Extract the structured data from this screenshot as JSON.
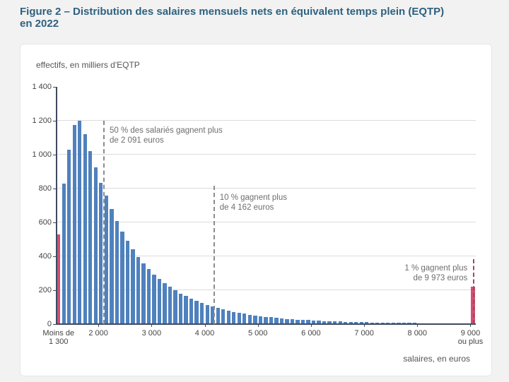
{
  "page": {
    "title_line1": "Figure 2 – Distribution des salaires mensuels nets en équivalent temps plein (EQTP)",
    "title_line2": "en 2022"
  },
  "chart_data": {
    "type": "bar",
    "title": "Figure 2 – Distribution des salaires mensuels nets en équivalent temps plein (EQTP) en 2022",
    "ylabel": "effectifs, en milliers d'EQTP",
    "xlabel": "salaires, en euros",
    "ylim": [
      0,
      1400
    ],
    "y_tick_step": 200,
    "y_tick_labels": [
      "0",
      "200",
      "400",
      "600",
      "800",
      "1 000",
      "1 200",
      "1 400"
    ],
    "grid": "horizontal",
    "bar_color": "#4f81bd",
    "highlight_color": "#d14f72",
    "axis_color": "#3f4a5f",
    "bins": {
      "first_label": "Moins de 1 300",
      "start_euros": 1300,
      "bin_width_euros": 100,
      "end_euros": 9000,
      "last_label": "9 000 ou plus"
    },
    "highlighted_indices": [
      0,
      78
    ],
    "values": [
      530,
      830,
      1030,
      1175,
      1200,
      1120,
      1020,
      925,
      835,
      760,
      680,
      610,
      545,
      490,
      440,
      395,
      358,
      324,
      293,
      266,
      241,
      219,
      199,
      181,
      165,
      150,
      137,
      125,
      114,
      104,
      95,
      87,
      79,
      72,
      66,
      61,
      56,
      51,
      47,
      43,
      40,
      37,
      34,
      31,
      29,
      27,
      25,
      23,
      21,
      20,
      18,
      17,
      16,
      15,
      14,
      13,
      12,
      11,
      10.5,
      10,
      9.5,
      9,
      8.5,
      8,
      7.5,
      7,
      7,
      6.5,
      6,
      6,
      5.5,
      5.5,
      5,
      5,
      4.5,
      4.5,
      4,
      4,
      220
    ],
    "x_ticks": [
      {
        "lines": [
          "Moins de",
          "1 300"
        ],
        "euros": null
      },
      {
        "lines": [
          "2 000"
        ],
        "euros": 2000
      },
      {
        "lines": [
          "3 000"
        ],
        "euros": 3000
      },
      {
        "lines": [
          "4 000"
        ],
        "euros": 4000
      },
      {
        "lines": [
          "5 000"
        ],
        "euros": 5000
      },
      {
        "lines": [
          "6 000"
        ],
        "euros": 6000
      },
      {
        "lines": [
          "7 000"
        ],
        "euros": 7000
      },
      {
        "lines": [
          "8 000"
        ],
        "euros": 8000
      },
      {
        "lines": [
          "9 000",
          "ou plus"
        ],
        "euros": 9000
      }
    ],
    "annotations": [
      {
        "lines": [
          "50 % des salariés gagnent plus",
          "de 2 091 euros"
        ],
        "euros": 2091,
        "align": "left",
        "line_color": "#8c8c8c"
      },
      {
        "lines": [
          "10 % gagnent plus",
          "de 4 162 euros"
        ],
        "euros": 4162,
        "align": "left",
        "line_color": "#8c8c8c"
      },
      {
        "lines": [
          "1 % gagnent plus",
          "de 9 973 euros"
        ],
        "euros": 9973,
        "align": "right",
        "line_color": "#9c4a60"
      }
    ]
  }
}
